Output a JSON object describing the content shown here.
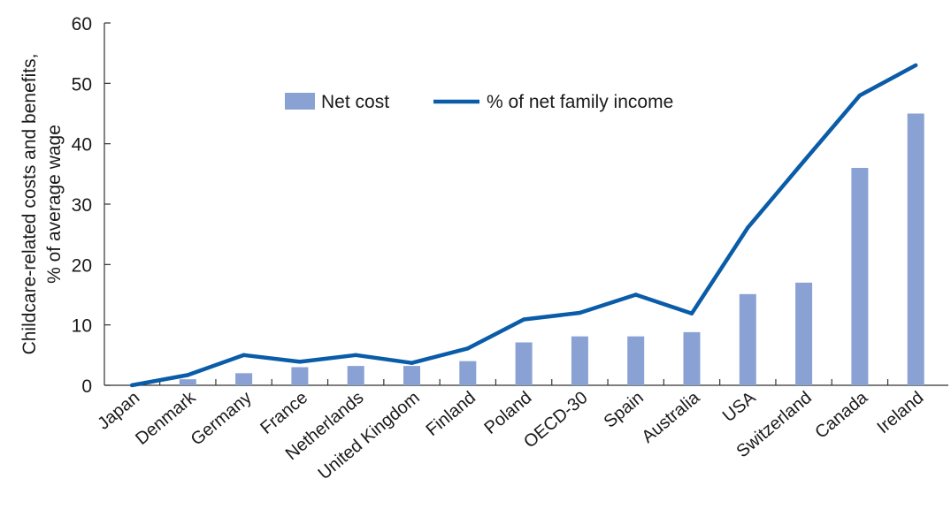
{
  "chart_data": {
    "type": "bar",
    "categories": [
      "Japan",
      "Denmark",
      "Germany",
      "France",
      "Netherlands",
      "United Kingdom",
      "Finland",
      "Poland",
      "OECD-30",
      "Spain",
      "Australia",
      "USA",
      "Switzerland",
      "Canada",
      "Ireland"
    ],
    "series": [
      {
        "name": "Net cost",
        "kind": "bar",
        "color": "#8aa1d4",
        "values": [
          0,
          1,
          2,
          3,
          3.2,
          3.2,
          4,
          7.1,
          8.1,
          8.1,
          8.8,
          15.1,
          17,
          36,
          45
        ]
      },
      {
        "name": "% of net family income",
        "kind": "line",
        "color": "#0a5ca8",
        "values": [
          0,
          1.7,
          5,
          3.9,
          5,
          3.7,
          6.1,
          10.9,
          12,
          15,
          11.9,
          26.1,
          37.1,
          48,
          53
        ]
      }
    ],
    "ylabel": [
      "Childcare-related costs and benefits,",
      "% of average wage"
    ],
    "xlabel": "",
    "ylim": [
      0,
      60
    ],
    "yticks": [
      0,
      10,
      20,
      30,
      40,
      50,
      60
    ],
    "grid": false,
    "legend": "top-center"
  }
}
